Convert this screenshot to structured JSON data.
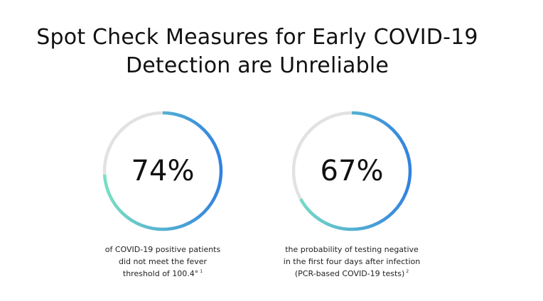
{
  "title": {
    "line1": "Spot Check Measures for Early COVID-19",
    "line2": "Detection are Unreliable"
  },
  "colors": {
    "track": "#e2e2e2",
    "gradient_start": "#79e0c4",
    "gradient_end": "#3282e0"
  },
  "chart_data": [
    {
      "type": "pie",
      "value": 74,
      "unit": "%",
      "label": "74%",
      "caption": {
        "lines": [
          "of COVID-19 positive patients",
          "did not meet the fever",
          "threshold of 100.4°"
        ],
        "footnote": "1"
      }
    },
    {
      "type": "pie",
      "value": 67,
      "unit": "%",
      "label": "67%",
      "caption": {
        "lines": [
          "the probability of testing negative",
          "in the first four days after infection",
          "(PCR-based COVID-19 tests)"
        ],
        "footnote": "2"
      }
    }
  ]
}
